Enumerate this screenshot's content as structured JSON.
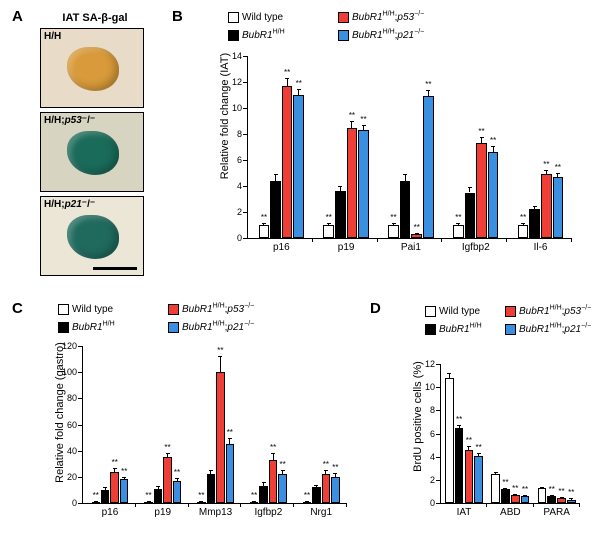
{
  "panelA": {
    "label": "A",
    "title": "IAT SA-β-gal",
    "boxes": [
      {
        "tag": "H/H",
        "tissue_color": "#d89a3a",
        "bg": "#e8dcc8"
      },
      {
        "tag": "H/H;p53⁻/⁻",
        "tissue_color": "#1a6b5a",
        "bg": "#d8d4c2"
      },
      {
        "tag": "H/H;p21⁻/⁻",
        "tissue_color": "#1f6a5d",
        "bg": "#ece6d6"
      }
    ]
  },
  "legend": {
    "items": [
      {
        "color": "#ffffff",
        "label_html": "Wild type"
      },
      {
        "color": "#000000",
        "label_html": "<span class='ital'>BubR1</span><span class='sup'>H/H</span>"
      },
      {
        "color": "#ef3e36",
        "label_html": "<span class='ital'>BubR1</span><span class='sup'>H/H</span>;<span class='ital'>p53</span><span class='sup'>−/−</span>"
      },
      {
        "color": "#3a8fe0",
        "label_html": "<span class='ital'>BubR1</span><span class='sup'>H/H</span>;<span class='ital'>p21</span><span class='sup'>−/−</span>"
      }
    ]
  },
  "panelB": {
    "label": "B",
    "ylabel": "Relative fold change (IAT)",
    "ylim": [
      0,
      14
    ],
    "ytick_step": 2,
    "categories": [
      "p16",
      "p19",
      "Pai1",
      "Igfbp2",
      "Il-6"
    ],
    "series_colors": [
      "#ffffff",
      "#000000",
      "#ef3e36",
      "#3a8fe0"
    ],
    "values": [
      [
        1.0,
        4.4,
        11.7,
        11.0
      ],
      [
        1.0,
        3.6,
        8.5,
        8.3
      ],
      [
        1.0,
        4.4,
        0.3,
        10.9
      ],
      [
        1.0,
        3.5,
        7.3,
        6.6
      ],
      [
        1.0,
        2.2,
        4.9,
        4.7
      ]
    ],
    "errors": [
      [
        0.15,
        0.5,
        0.6,
        0.5
      ],
      [
        0.15,
        0.4,
        0.5,
        0.4
      ],
      [
        0.15,
        0.5,
        0.1,
        0.5
      ],
      [
        0.15,
        0.4,
        0.5,
        0.5
      ],
      [
        0.15,
        0.3,
        0.3,
        0.3
      ]
    ],
    "sig": [
      [
        "**",
        "",
        "**",
        "**"
      ],
      [
        "**",
        "",
        "**",
        "**"
      ],
      [
        "**",
        "",
        "**",
        "**"
      ],
      [
        "**",
        "",
        "**",
        "**"
      ],
      [
        "**",
        "",
        "**",
        "**"
      ]
    ]
  },
  "panelC": {
    "label": "C",
    "ylabel": "Relative fold change (gastro)",
    "ylim": [
      0,
      120
    ],
    "ytick_step": 20,
    "categories": [
      "p16",
      "p19",
      "Mmp13",
      "Igfbp2",
      "Nrg1"
    ],
    "series_colors": [
      "#ffffff",
      "#000000",
      "#ef3e36",
      "#3a8fe0"
    ],
    "values": [
      [
        1,
        10,
        24,
        18
      ],
      [
        1,
        11,
        35,
        17
      ],
      [
        1,
        22,
        100,
        45
      ],
      [
        1,
        13,
        33,
        22
      ],
      [
        1,
        12,
        22,
        20
      ]
    ],
    "errors": [
      [
        0.3,
        2,
        3,
        2
      ],
      [
        0.3,
        2,
        3,
        2
      ],
      [
        0.3,
        3,
        12,
        5
      ],
      [
        0.3,
        3,
        5,
        3
      ],
      [
        0.3,
        2,
        3,
        3
      ]
    ],
    "sig": [
      [
        "**",
        "",
        "**",
        "**"
      ],
      [
        "**",
        "",
        "**",
        "**"
      ],
      [
        "**",
        "",
        "**",
        "**"
      ],
      [
        "**",
        "",
        "**",
        "**"
      ],
      [
        "**",
        "",
        "**",
        "**"
      ]
    ]
  },
  "panelD": {
    "label": "D",
    "ylabel": "BrdU positive cells (%)",
    "ylim": [
      0,
      12
    ],
    "ytick_step": 2,
    "categories": [
      "IAT",
      "ABD",
      "PARA"
    ],
    "series_colors": [
      "#ffffff",
      "#000000",
      "#ef3e36",
      "#3a8fe0"
    ],
    "values": [
      [
        10.8,
        6.5,
        4.6,
        4.1
      ],
      [
        2.5,
        1.2,
        0.7,
        0.6
      ],
      [
        1.3,
        0.6,
        0.4,
        0.3
      ]
    ],
    "errors": [
      [
        0.4,
        0.2,
        0.3,
        0.2
      ],
      [
        0.2,
        0.1,
        0.1,
        0.1
      ],
      [
        0.1,
        0.1,
        0.1,
        0.1
      ]
    ],
    "sig": [
      [
        "",
        "**",
        "**",
        "**"
      ],
      [
        "",
        "**",
        "**",
        "**"
      ],
      [
        "",
        "**",
        "**",
        "**"
      ]
    ]
  },
  "style": {
    "bg": "#ffffff",
    "axis_color": "#000000",
    "font": "Arial"
  }
}
